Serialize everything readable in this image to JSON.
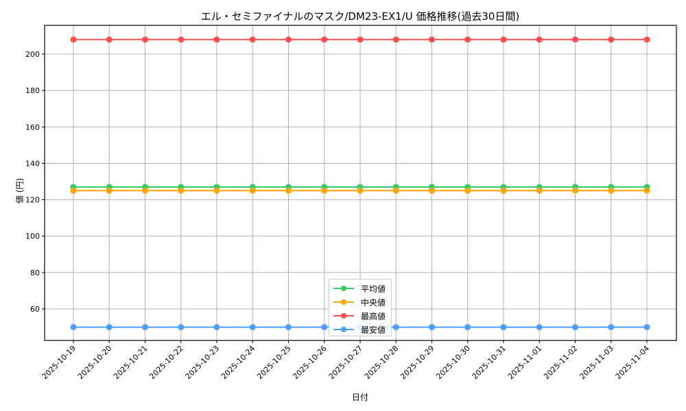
{
  "chart_data": {
    "type": "line",
    "title": "エル・セミファイナルのマスク/DM23-EX1/U 価格推移(過去30日間)",
    "xlabel": "日付",
    "ylabel": "値 (円)",
    "x": [
      "2025-10-19",
      "2025-10-20",
      "2025-10-21",
      "2025-10-22",
      "2025-10-23",
      "2025-10-24",
      "2025-10-25",
      "2025-10-26",
      "2025-10-27",
      "2025-10-28",
      "2025-10-29",
      "2025-10-30",
      "2025-10-31",
      "2025-11-01",
      "2025-11-02",
      "2025-11-03",
      "2025-11-04"
    ],
    "yticks": [
      60,
      80,
      100,
      120,
      140,
      160,
      180,
      200
    ],
    "ylim": [
      42,
      215
    ],
    "grid": true,
    "legend_position": "lower center",
    "series": [
      {
        "name": "平均値",
        "color": "#33cc66",
        "values": [
          127,
          127,
          127,
          127,
          127,
          127,
          127,
          127,
          127,
          127,
          127,
          127,
          127,
          127,
          127,
          127,
          127
        ]
      },
      {
        "name": "中央値",
        "color": "#ffa500",
        "values": [
          125,
          125,
          125,
          125,
          125,
          125,
          125,
          125,
          125,
          125,
          125,
          125,
          125,
          125,
          125,
          125,
          125
        ]
      },
      {
        "name": "最高値",
        "color": "#ff4d4d",
        "values": [
          208,
          208,
          208,
          208,
          208,
          208,
          208,
          208,
          208,
          208,
          208,
          208,
          208,
          208,
          208,
          208,
          208
        ]
      },
      {
        "name": "最安値",
        "color": "#4d9fff",
        "values": [
          50,
          50,
          50,
          50,
          50,
          50,
          50,
          50,
          50,
          50,
          50,
          50,
          50,
          50,
          50,
          50,
          50
        ]
      }
    ]
  }
}
